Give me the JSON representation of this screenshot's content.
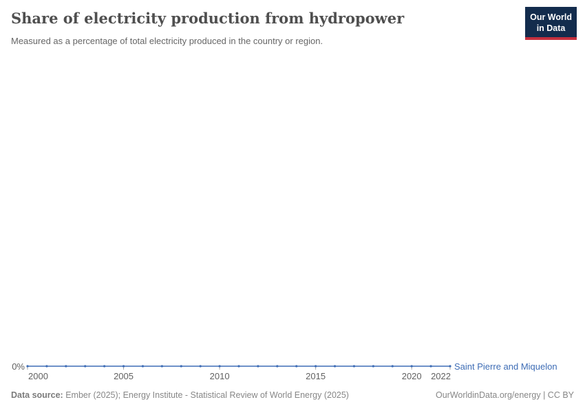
{
  "header": {
    "title": "Share of electricity production from hydropower",
    "subtitle": "Measured as a percentage of total electricity produced in the country or region.",
    "logo": {
      "line1": "Our World",
      "line2": "in Data"
    }
  },
  "chart_data": {
    "type": "line",
    "title": "Share of electricity production from hydropower",
    "xlabel": "",
    "ylabel": "",
    "x_range": [
      2000,
      2022
    ],
    "x_ticks": [
      2000,
      2005,
      2010,
      2015,
      2020,
      2022
    ],
    "y_ticks": [
      "0%"
    ],
    "ylim": [
      0,
      0
    ],
    "grid": false,
    "legend_position": "end-of-line",
    "series": [
      {
        "name": "Saint Pierre and Miquelon",
        "color": "#3d6cb5",
        "unit": "%",
        "x": [
          2000,
          2001,
          2002,
          2003,
          2004,
          2005,
          2006,
          2007,
          2008,
          2009,
          2010,
          2011,
          2012,
          2013,
          2014,
          2015,
          2016,
          2017,
          2018,
          2019,
          2020,
          2021,
          2022
        ],
        "values": [
          0,
          0,
          0,
          0,
          0,
          0,
          0,
          0,
          0,
          0,
          0,
          0,
          0,
          0,
          0,
          0,
          0,
          0,
          0,
          0,
          0,
          0,
          0
        ]
      }
    ]
  },
  "footer": {
    "data_source_label": "Data source:",
    "data_source_text": "Ember (2025); Energy Institute - Statistical Review of World Energy (2025)",
    "attribution": "OurWorldinData.org/energy | CC BY"
  },
  "colors": {
    "series_blue": "#3d6cb5",
    "logo_navy": "#132c4d",
    "logo_red": "#c5303e",
    "title_text": "#4f4f4f",
    "subtitle_text": "#666666",
    "axis_text": "#616161",
    "footer_text": "#878787"
  }
}
